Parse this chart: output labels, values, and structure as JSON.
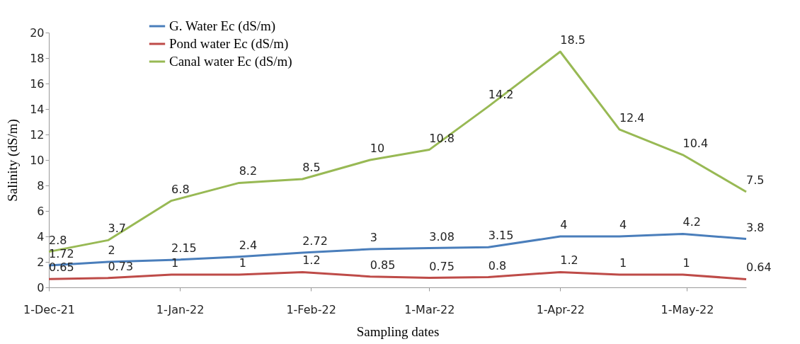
{
  "chart_data": {
    "type": "line",
    "xlabel": "Sampling dates",
    "ylabel": "Salinity (dS/m)",
    "x": [
      "2021-12-01",
      "2021-12-15",
      "2021-12-30",
      "2022-01-15",
      "2022-01-30",
      "2022-02-15",
      "2022-03-01",
      "2022-03-15",
      "2022-04-01",
      "2022-04-15",
      "2022-04-30",
      "2022-05-15"
    ],
    "series": [
      {
        "name": "G. Water Ec (dS/m)",
        "color": "#4a7ebb",
        "values": [
          1.72,
          2,
          2.15,
          2.4,
          2.72,
          3,
          3.08,
          3.15,
          4,
          4,
          4.2,
          3.8
        ]
      },
      {
        "name": "Pond water Ec (dS/m)",
        "color": "#be4b48",
        "values": [
          0.65,
          0.73,
          1,
          1,
          1.2,
          0.85,
          0.75,
          0.8,
          1.2,
          1,
          1,
          0.64
        ]
      },
      {
        "name": "Canal water Ec (dS/m)",
        "color": "#98b954",
        "values": [
          2.8,
          3.7,
          6.8,
          8.2,
          8.5,
          10,
          10.8,
          14.2,
          18.5,
          12.4,
          10.4,
          7.5
        ]
      }
    ],
    "xlim": [
      "2021-12-01",
      "2022-05-15"
    ],
    "xticks": [
      {
        "value": "2021-12-01",
        "label": "1-Dec-21"
      },
      {
        "value": "2022-01-01",
        "label": "1-Jan-22"
      },
      {
        "value": "2022-02-01",
        "label": "1-Feb-22"
      },
      {
        "value": "2022-03-01",
        "label": "1-Mar-22"
      },
      {
        "value": "2022-04-01",
        "label": "1-Apr-22"
      },
      {
        "value": "2022-05-01",
        "label": "1-May-22"
      }
    ],
    "ylim": [
      0,
      20
    ],
    "yticks": [
      0,
      2,
      4,
      6,
      8,
      10,
      12,
      14,
      16,
      18,
      20
    ],
    "data_labels": true,
    "legend": "top",
    "grid": false,
    "marker": "none",
    "line_style": "solid"
  }
}
